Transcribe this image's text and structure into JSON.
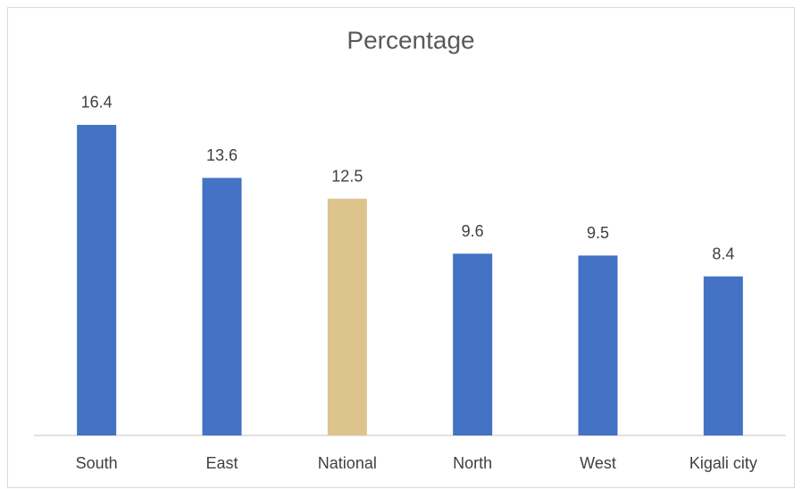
{
  "chart_data": {
    "type": "bar",
    "title": "Percentage",
    "categories": [
      "South",
      "East",
      "National",
      "North",
      "West",
      "Kigali city"
    ],
    "values": [
      16.4,
      13.6,
      12.5,
      9.6,
      9.5,
      8.4
    ],
    "colors": [
      "#4472c4",
      "#4472c4",
      "#dcc48c",
      "#4472c4",
      "#4472c4",
      "#4472c4"
    ],
    "ylim": [
      0,
      18
    ]
  }
}
